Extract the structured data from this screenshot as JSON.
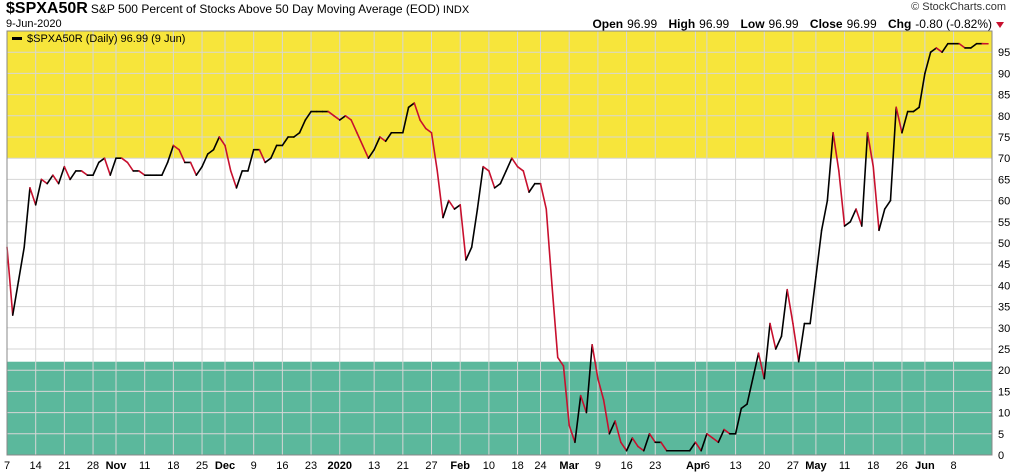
{
  "header": {
    "symbol": "$SPXA50R",
    "title": "S&P 500 Percent of Stocks Above 50 Day Moving Average (EOD)",
    "exchange": "INDX",
    "date": "9-Jun-2020",
    "brand": "© StockCharts.com"
  },
  "ohlc": {
    "open_label": "Open",
    "open": "96.99",
    "high_label": "High",
    "high": "96.99",
    "low_label": "Low",
    "low": "96.99",
    "close_label": "Close",
    "close": "96.99",
    "chg_label": "Chg",
    "chg": "-0.80 (-0.82%)"
  },
  "legend": {
    "text": "$SPXA50R (Daily) 96.99 (9 Jun)"
  },
  "colors": {
    "overbought_band": "#f7e53b",
    "oversold_band": "#5bb89c",
    "up_line": "#000000",
    "down_line": "#c8102e",
    "grid": "#d6d6d6"
  },
  "chart_data": {
    "type": "line",
    "ylim": [
      0,
      100
    ],
    "xlabel": "",
    "ylabel": "",
    "bands": [
      {
        "from": 70,
        "to": 100
      },
      {
        "from": 0,
        "to": 22
      }
    ],
    "y_ticks": [
      0,
      5,
      10,
      15,
      20,
      25,
      30,
      35,
      40,
      45,
      50,
      55,
      60,
      65,
      70,
      75,
      80,
      85,
      90,
      95
    ],
    "x_ticks": [
      {
        "label": "7",
        "i": 0,
        "bold": false
      },
      {
        "label": "14",
        "i": 5,
        "bold": false
      },
      {
        "label": "21",
        "i": 10,
        "bold": false
      },
      {
        "label": "28",
        "i": 15,
        "bold": false
      },
      {
        "label": "Nov",
        "i": 19,
        "bold": true
      },
      {
        "label": "11",
        "i": 24,
        "bold": false
      },
      {
        "label": "18",
        "i": 29,
        "bold": false
      },
      {
        "label": "25",
        "i": 34,
        "bold": false
      },
      {
        "label": "Dec",
        "i": 38,
        "bold": true
      },
      {
        "label": "9",
        "i": 43,
        "bold": false
      },
      {
        "label": "16",
        "i": 48,
        "bold": false
      },
      {
        "label": "23",
        "i": 53,
        "bold": false
      },
      {
        "label": "2020",
        "i": 58,
        "bold": true
      },
      {
        "label": "13",
        "i": 64,
        "bold": false
      },
      {
        "label": "21",
        "i": 69,
        "bold": false
      },
      {
        "label": "27",
        "i": 74,
        "bold": false
      },
      {
        "label": "Feb",
        "i": 79,
        "bold": true
      },
      {
        "label": "10",
        "i": 84,
        "bold": false
      },
      {
        "label": "18",
        "i": 89,
        "bold": false
      },
      {
        "label": "24",
        "i": 93,
        "bold": false
      },
      {
        "label": "Mar",
        "i": 98,
        "bold": true
      },
      {
        "label": "9",
        "i": 103,
        "bold": false
      },
      {
        "label": "16",
        "i": 108,
        "bold": false
      },
      {
        "label": "23",
        "i": 113,
        "bold": false
      },
      {
        "label": "Apr",
        "i": 120,
        "bold": true
      },
      {
        "label": "6",
        "i": 122,
        "bold": false
      },
      {
        "label": "13",
        "i": 127,
        "bold": false
      },
      {
        "label": "20",
        "i": 132,
        "bold": false
      },
      {
        "label": "27",
        "i": 137,
        "bold": false
      },
      {
        "label": "May",
        "i": 141,
        "bold": true
      },
      {
        "label": "11",
        "i": 146,
        "bold": false
      },
      {
        "label": "18",
        "i": 151,
        "bold": false
      },
      {
        "label": "26",
        "i": 156,
        "bold": false
      },
      {
        "label": "Jun",
        "i": 160,
        "bold": true
      },
      {
        "label": "8",
        "i": 165,
        "bold": false
      }
    ],
    "series": [
      {
        "values": [
          49,
          33,
          41,
          49,
          63,
          59,
          65,
          64,
          66,
          64,
          68,
          65,
          67,
          67,
          66,
          66,
          69,
          70,
          66,
          70,
          70,
          69,
          67,
          67,
          66,
          66,
          66,
          66,
          69,
          73,
          72,
          69,
          69,
          66,
          68,
          71,
          72,
          75,
          73,
          67,
          63,
          67,
          67,
          72,
          72,
          69,
          70,
          73,
          73,
          75,
          75,
          76,
          79,
          81,
          81,
          81,
          81,
          80,
          79,
          80,
          79,
          76,
          73,
          70,
          72,
          75,
          74,
          76,
          76,
          76,
          82,
          83,
          79,
          77,
          76,
          67,
          56,
          60,
          58,
          59,
          46,
          49,
          58,
          68,
          67,
          63,
          64,
          67,
          70,
          68,
          67,
          62,
          64,
          64,
          58,
          40,
          23,
          21,
          7,
          3,
          14,
          10,
          26,
          18,
          13,
          5,
          8,
          3,
          1,
          4,
          2,
          1,
          5,
          3,
          3,
          1,
          1,
          1,
          1,
          1,
          3,
          1,
          5,
          4,
          3,
          6,
          5,
          5,
          11,
          12,
          18,
          24,
          18,
          31,
          25,
          28,
          39,
          31,
          22,
          31,
          31,
          42,
          53,
          60,
          76,
          67,
          54,
          55,
          58,
          54,
          76,
          68,
          53,
          58,
          60,
          82,
          76,
          81,
          81,
          82,
          90,
          95,
          96,
          95,
          97,
          97,
          97,
          96,
          96,
          97,
          97,
          96.99
        ]
      }
    ]
  }
}
